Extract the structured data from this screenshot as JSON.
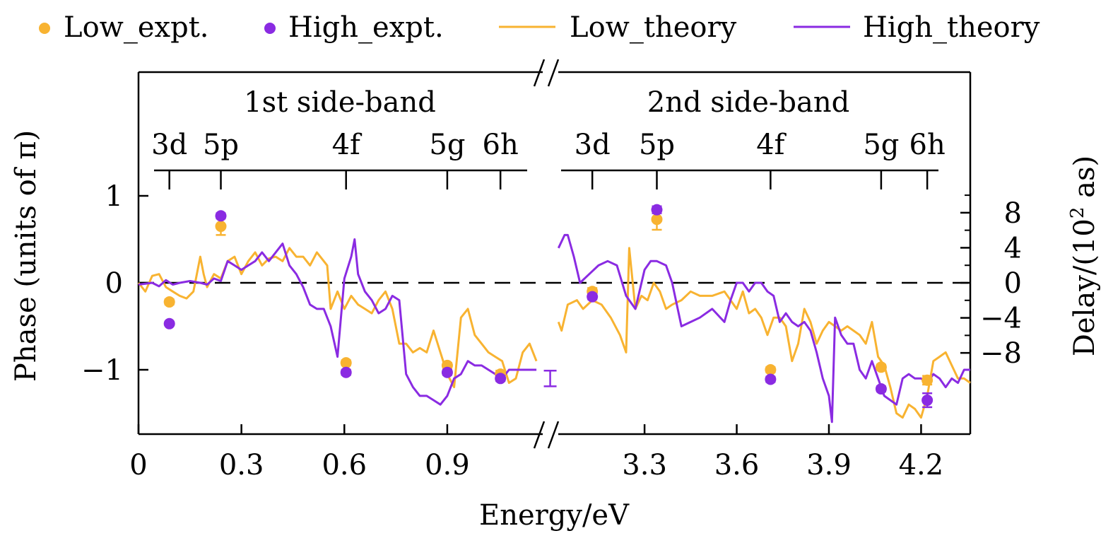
{
  "chart_data": {
    "type": "line",
    "xlabel": "Energy/eV",
    "ylabel": "Phase (units of π)",
    "ylabel_right_prefix": "Delay/(10",
    "ylabel_right_sup": "2",
    "ylabel_right_suffix": " as)",
    "left_ylim": [
      -1.75,
      2.4
    ],
    "left_yticks": [
      "1",
      "0",
      "−1"
    ],
    "left_ytick_values": [
      1,
      0,
      -1
    ],
    "right_ytick_labels": [
      "8",
      "4",
      "0",
      "−4",
      "−8"
    ],
    "right_ytick_values": [
      0.806,
      0.403,
      0,
      -0.403,
      -0.806
    ],
    "zero_line": "dashed",
    "grid": false,
    "legend_position": "top",
    "legend": [
      {
        "label": "Low_expt.",
        "kind": "marker",
        "color": "#F8B331"
      },
      {
        "label": "High_expt.",
        "kind": "marker",
        "color": "#8A2BE2"
      },
      {
        "label": "Low_theory",
        "kind": "line",
        "color": "#F8B331"
      },
      {
        "label": "High_theory",
        "kind": "line",
        "color": "#8A2BE2"
      }
    ],
    "panels": [
      {
        "title": "1st side-band",
        "xlim": [
          0.0,
          1.17
        ],
        "xticks": [
          0,
          0.3,
          0.6,
          0.9
        ],
        "xtick_labels": [
          "0",
          "0.3",
          "0.6",
          "0.9"
        ],
        "levels": [
          {
            "label": "3d",
            "x": 0.09
          },
          {
            "label": "5p",
            "x": 0.24
          },
          {
            "label": "4f",
            "x": 0.605
          },
          {
            "label": "5g",
            "x": 0.9
          },
          {
            "label": "6h",
            "x": 1.055
          }
        ],
        "series": [
          {
            "name": "Low_theory",
            "color": "#F8B331",
            "x": [
              0.0,
              0.02,
              0.04,
              0.06,
              0.08,
              0.1,
              0.12,
              0.14,
              0.16,
              0.18,
              0.19,
              0.2,
              0.22,
              0.24,
              0.26,
              0.28,
              0.3,
              0.32,
              0.34,
              0.36,
              0.38,
              0.4,
              0.42,
              0.44,
              0.46,
              0.48,
              0.5,
              0.52,
              0.54,
              0.55,
              0.56,
              0.58,
              0.6,
              0.62,
              0.64,
              0.66,
              0.68,
              0.7,
              0.72,
              0.74,
              0.76,
              0.78,
              0.8,
              0.82,
              0.84,
              0.86,
              0.88,
              0.9,
              0.92,
              0.94,
              0.96,
              0.98,
              1.0,
              1.02,
              1.04,
              1.06,
              1.08,
              1.1,
              1.12,
              1.14,
              1.16
            ],
            "y": [
              0.0,
              -0.1,
              0.08,
              0.1,
              -0.05,
              -0.1,
              -0.15,
              -0.18,
              -0.1,
              0.3,
              0.1,
              -0.05,
              0.1,
              0.05,
              0.25,
              0.3,
              0.1,
              0.25,
              0.35,
              0.2,
              0.28,
              0.3,
              0.25,
              0.4,
              0.3,
              0.3,
              0.2,
              0.35,
              0.25,
              0.2,
              -0.3,
              -0.1,
              -0.3,
              -0.15,
              -0.25,
              -0.3,
              -0.35,
              -0.2,
              -0.1,
              -0.3,
              -0.7,
              -0.7,
              -0.8,
              -0.75,
              -0.8,
              -0.55,
              -0.8,
              -1.05,
              -1.2,
              -0.4,
              -0.3,
              -0.6,
              -0.7,
              -0.8,
              -0.85,
              -0.9,
              -1.15,
              -1.1,
              -0.8,
              -0.7,
              -0.9
            ]
          },
          {
            "name": "High_theory",
            "color": "#8A2BE2",
            "x": [
              0.0,
              0.04,
              0.06,
              0.08,
              0.1,
              0.12,
              0.15,
              0.18,
              0.2,
              0.22,
              0.24,
              0.26,
              0.28,
              0.3,
              0.32,
              0.34,
              0.36,
              0.38,
              0.4,
              0.42,
              0.44,
              0.46,
              0.48,
              0.5,
              0.52,
              0.54,
              0.56,
              0.58,
              0.6,
              0.62,
              0.63,
              0.64,
              0.66,
              0.68,
              0.7,
              0.72,
              0.74,
              0.76,
              0.78,
              0.8,
              0.82,
              0.84,
              0.86,
              0.88,
              0.9,
              0.92,
              0.94,
              0.96,
              0.98,
              1.0,
              1.02,
              1.04,
              1.06,
              1.08,
              1.1,
              1.14,
              1.16
            ],
            "y": [
              -0.02,
              0.0,
              -0.04,
              0.03,
              -0.02,
              0.0,
              0.02,
              0.0,
              -0.02,
              0.05,
              0.02,
              0.25,
              0.2,
              0.15,
              0.2,
              0.25,
              0.35,
              0.25,
              0.35,
              0.45,
              0.2,
              0.1,
              -0.05,
              -0.25,
              -0.3,
              -0.3,
              -0.5,
              -0.85,
              0.05,
              0.3,
              0.5,
              0.1,
              -0.1,
              -0.2,
              -0.35,
              -0.3,
              -0.15,
              -0.2,
              -1.05,
              -1.2,
              -1.3,
              -1.3,
              -1.35,
              -1.4,
              -1.3,
              -1.1,
              -1.05,
              -0.9,
              -0.95,
              -0.95,
              -1.0,
              -1.05,
              -1.1,
              -1.0,
              -1.0,
              -1.0,
              -1.0
            ]
          }
        ],
        "experimental": [
          {
            "name": "Low_expt.",
            "color": "#F8B331",
            "x": [
              0.09,
              0.24,
              0.605,
              0.9,
              1.055
            ],
            "y": [
              -0.22,
              0.65,
              -0.92,
              -0.95,
              -1.05
            ],
            "err": [
              0.03,
              0.1,
              0.03,
              0.03,
              0.04
            ]
          },
          {
            "name": "High_expt.",
            "color": "#8A2BE2",
            "x": [
              0.09,
              0.24,
              0.605,
              0.9,
              1.055
            ],
            "y": [
              -0.47,
              0.77,
              -1.03,
              -1.03,
              -1.1
            ],
            "err": [
              0.02,
              0.03,
              0.03,
              0.03,
              0.03
            ]
          }
        ],
        "extra_errorbar": {
          "x": 1.2,
          "y": -1.1,
          "err": 0.09,
          "color": "#8A2BE2"
        }
      },
      {
        "title": "2nd side-band",
        "xlim": [
          3.01,
          4.36
        ],
        "xticks": [
          3.3,
          3.6,
          3.9,
          4.2
        ],
        "xtick_labels": [
          "3.3",
          "3.6",
          "3.9",
          "4.2"
        ],
        "levels": [
          {
            "label": "3d",
            "x": 3.13
          },
          {
            "label": "5p",
            "x": 3.34
          },
          {
            "label": "4f",
            "x": 3.71
          },
          {
            "label": "5g",
            "x": 4.07
          },
          {
            "label": "6h",
            "x": 4.22
          }
        ],
        "series": [
          {
            "name": "Low_theory",
            "color": "#F8B331",
            "x": [
              3.02,
              3.03,
              3.05,
              3.08,
              3.1,
              3.13,
              3.16,
              3.19,
              3.22,
              3.24,
              3.25,
              3.27,
              3.29,
              3.31,
              3.33,
              3.35,
              3.37,
              3.39,
              3.42,
              3.45,
              3.48,
              3.52,
              3.56,
              3.6,
              3.62,
              3.64,
              3.66,
              3.68,
              3.7,
              3.72,
              3.74,
              3.76,
              3.78,
              3.8,
              3.82,
              3.84,
              3.86,
              3.88,
              3.9,
              3.92,
              3.94,
              3.96,
              3.98,
              4.0,
              4.02,
              4.04,
              4.06,
              4.08,
              4.1,
              4.12,
              4.14,
              4.16,
              4.18,
              4.2,
              4.22,
              4.24,
              4.26,
              4.28,
              4.3,
              4.32,
              4.34,
              4.36
            ],
            "y": [
              -0.45,
              -0.55,
              -0.25,
              -0.2,
              -0.3,
              -0.2,
              -0.25,
              -0.4,
              -0.6,
              -0.8,
              0.4,
              -0.3,
              -0.15,
              -0.2,
              0.0,
              -0.1,
              -0.3,
              -0.25,
              -0.2,
              -0.1,
              -0.15,
              -0.15,
              -0.1,
              -0.3,
              -0.1,
              -0.35,
              -0.3,
              -0.4,
              -0.6,
              -0.4,
              -0.4,
              -0.5,
              -0.9,
              -0.7,
              -0.3,
              -0.45,
              -0.7,
              -0.55,
              -0.45,
              -0.5,
              -0.55,
              -0.5,
              -0.55,
              -0.6,
              -0.7,
              -0.45,
              -0.85,
              -0.95,
              -1.2,
              -1.5,
              -1.55,
              -1.4,
              -1.45,
              -1.55,
              -1.3,
              -0.9,
              -0.85,
              -0.8,
              -0.95,
              -1.1,
              -1.1,
              -1.15
            ]
          },
          {
            "name": "High_theory",
            "color": "#8A2BE2",
            "x": [
              3.02,
              3.04,
              3.05,
              3.07,
              3.09,
              3.12,
              3.15,
              3.18,
              3.21,
              3.24,
              3.27,
              3.3,
              3.32,
              3.34,
              3.37,
              3.39,
              3.42,
              3.45,
              3.48,
              3.52,
              3.56,
              3.58,
              3.6,
              3.62,
              3.64,
              3.66,
              3.68,
              3.7,
              3.72,
              3.74,
              3.76,
              3.78,
              3.8,
              3.82,
              3.84,
              3.86,
              3.88,
              3.9,
              3.91,
              3.92,
              3.94,
              3.96,
              3.98,
              4.0,
              4.02,
              4.04,
              4.06,
              4.08,
              4.1,
              4.12,
              4.14,
              4.16,
              4.18,
              4.2,
              4.22,
              4.24,
              4.26,
              4.28,
              4.3,
              4.32,
              4.34,
              4.36
            ],
            "y": [
              0.4,
              0.55,
              0.55,
              0.3,
              0.0,
              0.1,
              0.2,
              0.25,
              0.2,
              -0.15,
              -0.3,
              0.15,
              0.25,
              0.25,
              0.2,
              0.0,
              -0.5,
              -0.45,
              -0.4,
              -0.3,
              -0.45,
              -0.2,
              0.0,
              0.0,
              -0.1,
              0.0,
              0.0,
              -0.1,
              -0.15,
              -0.45,
              -0.35,
              -0.45,
              -0.5,
              -0.45,
              -0.55,
              -0.8,
              -1.1,
              -1.3,
              -1.6,
              -0.4,
              -0.6,
              -0.7,
              -0.7,
              -1.0,
              -1.1,
              -0.9,
              -1.1,
              -1.3,
              -1.35,
              -1.4,
              -1.1,
              -1.05,
              -1.1,
              -1.1,
              -1.15,
              -1.05,
              -1.1,
              -1.2,
              -1.1,
              -1.15,
              -1.0,
              -1.0
            ]
          }
        ],
        "experimental": [
          {
            "name": "Low_expt.",
            "color": "#F8B331",
            "x": [
              3.13,
              3.34,
              3.71,
              4.07,
              4.22
            ],
            "y": [
              -0.1,
              0.73,
              -1.0,
              -0.97,
              -1.12
            ],
            "err": [
              0.04,
              0.12,
              0.03,
              0.03,
              0.05
            ]
          },
          {
            "name": "High_expt.",
            "color": "#8A2BE2",
            "x": [
              3.13,
              3.34,
              3.71,
              4.07,
              4.22
            ],
            "y": [
              -0.16,
              0.84,
              -1.11,
              -1.22,
              -1.35
            ],
            "err": [
              0.03,
              0.04,
              0.03,
              0.03,
              0.08
            ]
          }
        ]
      }
    ]
  }
}
